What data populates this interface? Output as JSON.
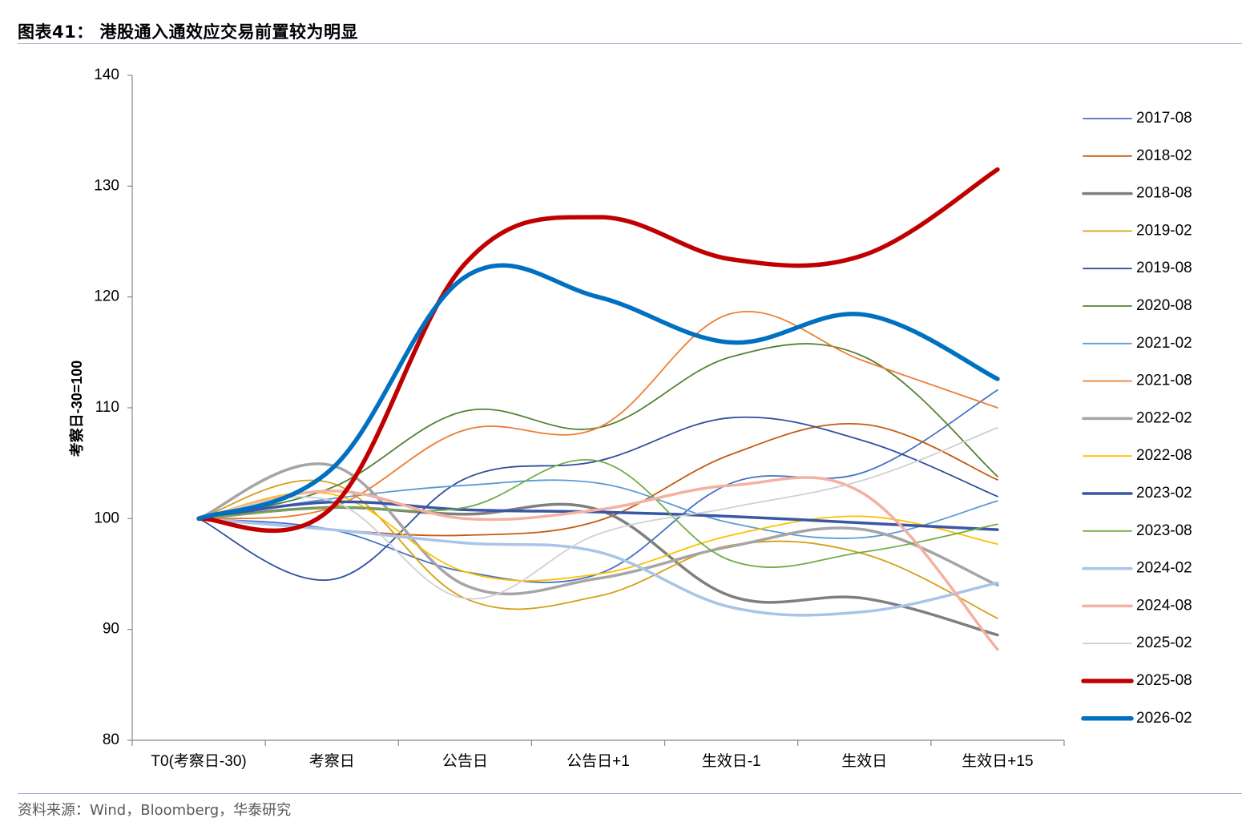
{
  "title": "图表41： 港股通入通效应交易前置较为明显",
  "source": "资料来源：Wind，Bloomberg，华泰研究",
  "chart_data": {
    "type": "line",
    "ylabel": "考察日-30=100",
    "xlabel": "",
    "ylim": [
      80,
      140
    ],
    "yticks": [
      80,
      90,
      100,
      110,
      120,
      130,
      140
    ],
    "categories": [
      "T0(考察日-30)",
      "考察日",
      "公告日",
      "公告日+1",
      "生效日-1",
      "生效日",
      "生效日+15"
    ],
    "grid": false,
    "legend_position": "right",
    "series": [
      {
        "name": "2017-08",
        "color": "#4472c4",
        "width": 1.8,
        "values": [
          100,
          99.0,
          95.2,
          95.0,
          103.2,
          104.2,
          111.6
        ]
      },
      {
        "name": "2018-02",
        "color": "#c55a11",
        "width": 1.8,
        "values": [
          100,
          99.0,
          98.5,
          99.8,
          105.8,
          108.5,
          103.5
        ]
      },
      {
        "name": "2018-08",
        "color": "#7f7f7f",
        "width": 3.5,
        "values": [
          100,
          101.0,
          100.4,
          100.8,
          93.0,
          92.8,
          89.5
        ]
      },
      {
        "name": "2019-02",
        "color": "#d4a017",
        "width": 1.8,
        "values": [
          100,
          103.2,
          92.8,
          93.0,
          97.6,
          96.8,
          91.0
        ]
      },
      {
        "name": "2019-08",
        "color": "#2f4f9e",
        "width": 1.8,
        "values": [
          100,
          94.5,
          103.6,
          105.2,
          109.1,
          107.0,
          102.0
        ]
      },
      {
        "name": "2020-08",
        "color": "#548235",
        "width": 1.8,
        "values": [
          100,
          102.8,
          109.7,
          108.2,
          114.6,
          114.6,
          103.8
        ]
      },
      {
        "name": "2021-02",
        "color": "#5b9bd5",
        "width": 1.8,
        "values": [
          100,
          101.8,
          103.0,
          103.2,
          99.6,
          98.3,
          101.6
        ]
      },
      {
        "name": "2021-08",
        "color": "#ed7d31",
        "width": 1.8,
        "values": [
          100,
          101.0,
          108.0,
          108.2,
          118.5,
          114.2,
          110.0
        ]
      },
      {
        "name": "2022-02",
        "color": "#a5a5a5",
        "width": 3.5,
        "values": [
          100,
          104.8,
          94.0,
          94.6,
          97.5,
          99.0,
          94.0
        ]
      },
      {
        "name": "2022-08",
        "color": "#ffc000",
        "width": 1.8,
        "values": [
          100,
          102.2,
          95.2,
          95.0,
          98.5,
          100.2,
          97.7
        ]
      },
      {
        "name": "2023-02",
        "color": "#3a56a4",
        "width": 3.5,
        "values": [
          100,
          101.5,
          100.8,
          100.6,
          100.2,
          99.6,
          99.0
        ]
      },
      {
        "name": "2023-08",
        "color": "#70ad47",
        "width": 1.8,
        "values": [
          100,
          101.0,
          101.0,
          105.2,
          96.2,
          97.0,
          99.5
        ]
      },
      {
        "name": "2024-02",
        "color": "#a9c4e8",
        "width": 3.5,
        "values": [
          100,
          99.0,
          97.8,
          97.0,
          92.0,
          91.6,
          94.2
        ]
      },
      {
        "name": "2024-08",
        "color": "#f4b0a0",
        "width": 3.5,
        "values": [
          100,
          102.5,
          100.0,
          100.8,
          103.0,
          102.2,
          88.2
        ]
      },
      {
        "name": "2025-02",
        "color": "#d0d0d0",
        "width": 1.8,
        "values": [
          100,
          101.6,
          92.8,
          98.6,
          101.0,
          103.5,
          108.2
        ]
      },
      {
        "name": "2025-08",
        "color": "#c00000",
        "width": 5.5,
        "values": [
          100,
          101.0,
          123.0,
          127.2,
          123.4,
          123.8,
          131.5
        ]
      },
      {
        "name": "2026-02",
        "color": "#0070c0",
        "width": 5.5,
        "values": [
          100,
          104.5,
          121.8,
          120.0,
          115.9,
          118.4,
          112.6
        ]
      }
    ]
  }
}
